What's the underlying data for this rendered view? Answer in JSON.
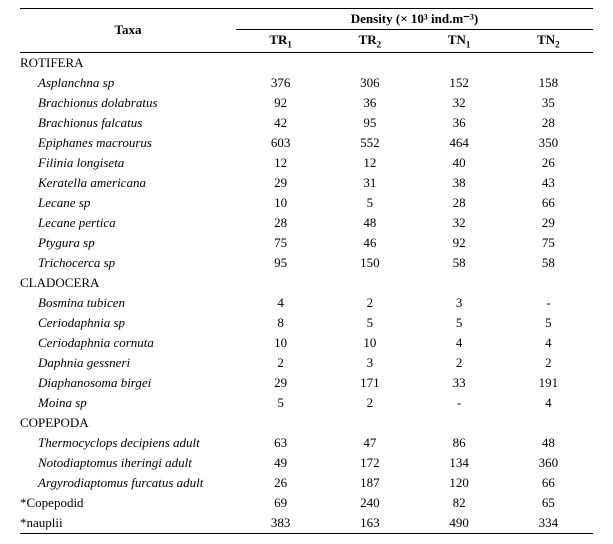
{
  "header": {
    "taxa": "Taxa",
    "density": "Density (× 10³ ind.m⁻³)",
    "cols": [
      "TR",
      "TR",
      "TN",
      "TN"
    ],
    "subs": [
      "1",
      "2",
      "1",
      "2"
    ]
  },
  "groups": [
    {
      "name": "ROTIFERA",
      "rows": [
        {
          "name": "Asplanchna sp",
          "italicAll": false,
          "v": [
            "376",
            "306",
            "152",
            "158"
          ]
        },
        {
          "name": "Brachionus dolabratus",
          "italicAll": true,
          "v": [
            "92",
            "36",
            "32",
            "35"
          ]
        },
        {
          "name": "Brachionus falcatus",
          "italicAll": true,
          "v": [
            "42",
            "95",
            "36",
            "28"
          ]
        },
        {
          "name": "Epiphanes macrourus",
          "italicAll": true,
          "v": [
            "603",
            "552",
            "464",
            "350"
          ]
        },
        {
          "name": "Filinia longiseta",
          "italicAll": true,
          "v": [
            "12",
            "12",
            "40",
            "26"
          ]
        },
        {
          "name": "Keratella americana",
          "italicAll": true,
          "v": [
            "29",
            "31",
            "38",
            "43"
          ]
        },
        {
          "name": "Lecane sp",
          "italicAll": false,
          "v": [
            "10",
            "5",
            "28",
            "66"
          ]
        },
        {
          "name": "Lecane pertica",
          "italicAll": true,
          "v": [
            "28",
            "48",
            "32",
            "29"
          ]
        },
        {
          "name": "Ptygura sp",
          "italicAll": false,
          "v": [
            "75",
            "46",
            "92",
            "75"
          ]
        },
        {
          "name": "Trichocerca sp",
          "italicAll": false,
          "v": [
            "95",
            "150",
            "58",
            "58"
          ]
        }
      ]
    },
    {
      "name": "CLADOCERA",
      "rows": [
        {
          "name": "Bosmina tubicen",
          "italicAll": true,
          "v": [
            "4",
            "2",
            "3",
            "-"
          ]
        },
        {
          "name": "Ceriodaphnia sp",
          "italicAll": false,
          "v": [
            "8",
            "5",
            "5",
            "5"
          ]
        },
        {
          "name": "Ceriodaphnia cornuta",
          "italicAll": true,
          "v": [
            "10",
            "10",
            "4",
            "4"
          ]
        },
        {
          "name": "Daphnia gessneri",
          "italicAll": true,
          "v": [
            "2",
            "3",
            "2",
            "2"
          ]
        },
        {
          "name": "Diaphanosoma birgei",
          "italicAll": true,
          "v": [
            "29",
            "171",
            "33",
            "191"
          ]
        },
        {
          "name": "Moina sp",
          "italicAll": false,
          "v": [
            "5",
            "2",
            "-",
            "4"
          ]
        }
      ]
    },
    {
      "name": "COPEPODA",
      "rows": [
        {
          "name": "Thermocyclops decipiens adult",
          "italicAll": false,
          "v": [
            "63",
            "47",
            "86",
            "48"
          ]
        },
        {
          "name": "Notodiaptomus iheringi adult",
          "italicAll": false,
          "v": [
            "49",
            "172",
            "134",
            "360"
          ]
        },
        {
          "name": "Argyrodiaptomus furcatus adult",
          "italicAll": false,
          "v": [
            "26",
            "187",
            "120",
            "66"
          ]
        }
      ]
    }
  ],
  "footer": [
    {
      "name": "*Copepodid",
      "v": [
        "69",
        "240",
        "82",
        "65"
      ]
    },
    {
      "name": "*nauplii",
      "v": [
        "383",
        "163",
        "490",
        "334"
      ]
    }
  ]
}
